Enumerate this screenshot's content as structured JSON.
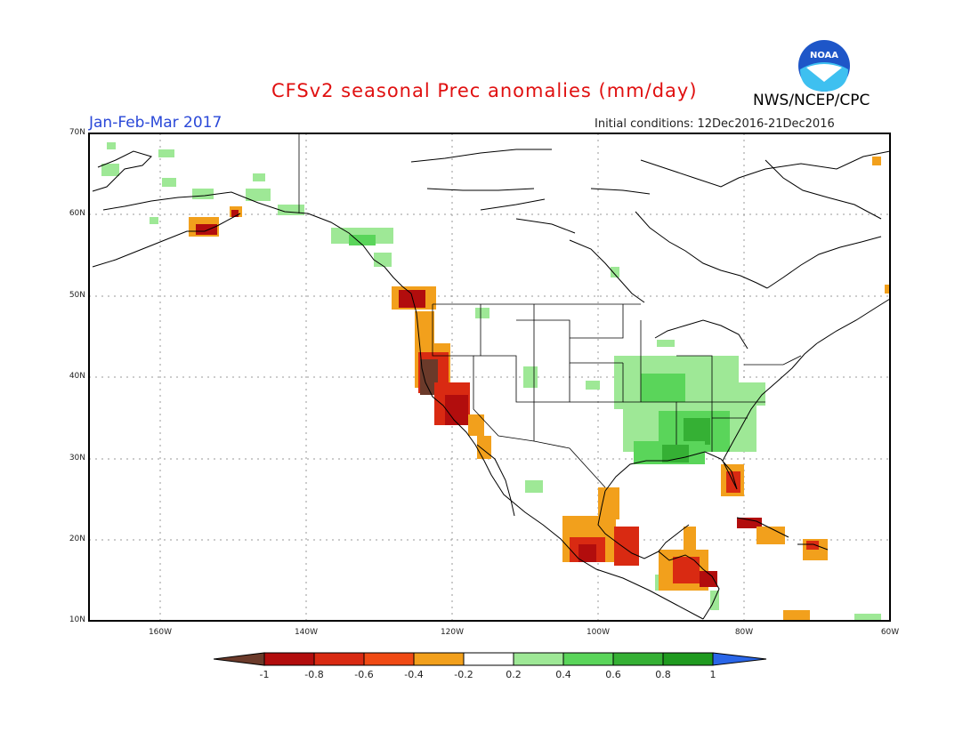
{
  "header": {
    "title": "CFSv2 seasonal Prec anomalies (mm/day)",
    "period": "Jan-Feb-Mar 2017",
    "initial_conditions": "Initial conditions: 12Dec2016-21Dec2016",
    "agency": "NWS/NCEP/CPC",
    "logo_text": "NOAA"
  },
  "map": {
    "y_ticks": [
      "70N",
      "60N",
      "50N",
      "40N",
      "30N",
      "20N",
      "10N"
    ],
    "x_ticks": [
      "160W",
      "140W",
      "120W",
      "100W",
      "80W",
      "60W"
    ],
    "colors": {
      "land_outline": "#000000",
      "grid": "#888888",
      "frame": "#000000"
    }
  },
  "colorbar": {
    "labels": [
      "-1",
      "-0.8",
      "-0.6",
      "-0.4",
      "-0.2",
      "0.2",
      "0.4",
      "0.6",
      "0.8",
      "1"
    ],
    "colors": [
      "#6b3a2a",
      "#b20d0d",
      "#d92a12",
      "#f04a14",
      "#f2a01c",
      "#ffffff",
      "#9ee896",
      "#5ad55a",
      "#35b034",
      "#1f9a1f",
      "#2a66e8"
    ]
  }
}
